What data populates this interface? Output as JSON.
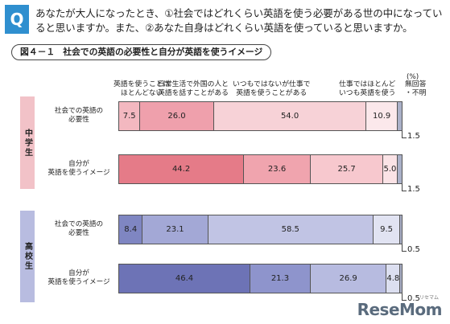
{
  "question": {
    "badge": "Q",
    "text": "あなたが大人になったとき、①社会ではどれくらい英語を使う必要がある世の中になっていると思いますか。また、②あなた自身はどれくらい英語を使っていると思いますか。"
  },
  "figure": {
    "number": "図４－１",
    "title": "社会での英語の必要性と自分が英語を使うイメージ"
  },
  "watermark": {
    "logo": "ReseMom",
    "ruby": "リセマム"
  },
  "chart_data": {
    "type": "bar",
    "orientation": "horizontal",
    "stacked": true,
    "unit": "(%)",
    "categories_header": [
      "英語を使うことは\nほとんどない",
      "日常生活で外国の人と\n英語を話すことがある",
      "いつもではないが仕事で\n英語を使うことがある",
      "仕事ではほとんど\nいつも英語を使う",
      "無回答\n・不明"
    ],
    "groups": [
      {
        "name": "中学生",
        "color_base": "#e8808c",
        "rows": [
          {
            "label": "社会での英語の\n必要性",
            "values": [
              7.5,
              26.0,
              54.0,
              10.9,
              1.5
            ],
            "labels": [
              "7.5",
              "26.0",
              "54.0",
              "10.9",
              "1.5"
            ],
            "colors": [
              "#f3b8c0",
              "#efa0ac",
              "#f7d2d7",
              "#fbe8eb",
              "#aab0c8"
            ]
          },
          {
            "label": "自分が\n英語を使うイメージ",
            "values": [
              44.2,
              23.6,
              25.7,
              5.0,
              1.5
            ],
            "labels": [
              "44.2",
              "23.6",
              "25.7",
              "5.0",
              "1.5"
            ],
            "colors": [
              "#e57b88",
              "#f0a4ae",
              "#f7c8ce",
              "#fbe3e6",
              "#aab0c8"
            ]
          }
        ]
      },
      {
        "name": "高校生",
        "color_base": "#6f76b8",
        "rows": [
          {
            "label": "社会での英語の\n必要性",
            "values": [
              8.4,
              23.1,
              58.5,
              9.5,
              0.5
            ],
            "labels": [
              "8.4",
              "23.1",
              "58.5",
              "9.5",
              "0.5"
            ],
            "colors": [
              "#7f86c2",
              "#a3a8d6",
              "#c1c4e4",
              "#e1e3f2",
              "#aab0c8"
            ]
          },
          {
            "label": "自分が\n英語を使うイメージ",
            "values": [
              46.4,
              21.3,
              26.9,
              4.8,
              0.5
            ],
            "labels": [
              "46.4",
              "21.3",
              "26.9",
              "4.8",
              "0.5"
            ],
            "colors": [
              "#6d73b6",
              "#8e94cc",
              "#b7bbe0",
              "#dcdff0",
              "#aab0c8"
            ]
          }
        ]
      }
    ],
    "xlim": [
      0,
      100
    ]
  }
}
